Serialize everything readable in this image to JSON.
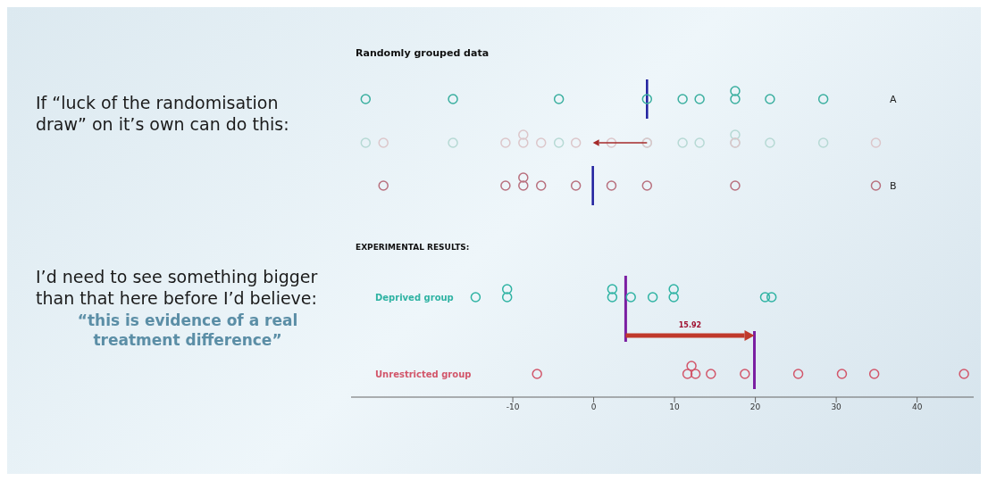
{
  "chart_data": {
    "type": "scatter",
    "title": "Randomly grouped data",
    "orientation": "horizontal",
    "categories": [
      "A",
      "B",
      "Deprived group",
      "Unrestricted group"
    ],
    "marker": "circle",
    "xlim": [
      -30,
      47
    ],
    "xticks": [
      -10,
      0,
      10,
      20,
      30,
      40
    ],
    "series": [
      {
        "color": "#3aaf9f",
        "x": [
          "A",
          "A",
          "A",
          "A",
          "A",
          "A",
          "A",
          "A",
          "A",
          "A"
        ],
        "values": [
          -28.2,
          -17.4,
          -4.3,
          6.6,
          11.0,
          13.1,
          17.5,
          17.5,
          21.8,
          28.4
        ]
      },
      {
        "color": "#b8707e",
        "x": [
          "B",
          "B",
          "B",
          "B",
          "B",
          "B",
          "B",
          "B",
          "B",
          "B"
        ],
        "values": [
          -26.0,
          -10.9,
          -8.7,
          -8.7,
          -6.5,
          -2.2,
          2.2,
          6.6,
          17.5,
          34.9
        ]
      },
      {
        "color": "#2fb3a3",
        "x": [
          "Deprived group",
          "Deprived group",
          "Deprived group",
          "Deprived group",
          "Deprived group",
          "Deprived group",
          "Deprived group",
          "Deprived group",
          "Deprived group",
          "Deprived group",
          "Deprived group"
        ],
        "values": [
          -14.6,
          -10.7,
          -10.7,
          2.3,
          2.3,
          4.6,
          7.3,
          9.9,
          9.9,
          21.2,
          22.0
        ]
      },
      {
        "color": "#d2566a",
        "x": [
          "Unrestricted group",
          "Unrestricted group",
          "Unrestricted group",
          "Unrestricted group",
          "Unrestricted group",
          "Unrestricted group",
          "Unrestricted group",
          "Unrestricted group",
          "Unrestricted group",
          "Unrestricted group"
        ],
        "values": [
          -7.0,
          11.6,
          12.1,
          12.6,
          14.5,
          18.7,
          25.3,
          30.7,
          34.7,
          45.8
        ]
      }
    ],
    "ref_lines": [
      {
        "axis": "x",
        "value": 6.6,
        "color": "#1f1f9e"
      },
      {
        "axis": "x",
        "value": -0.1,
        "color": "#1f1f9e"
      },
      {
        "axis": "x",
        "value": 3.96,
        "color": "#7b1fa2"
      },
      {
        "axis": "x",
        "value": 19.88,
        "color": "#7b1fa2"
      }
    ],
    "annotations": [
      "If “luck of the randomisation draw” on it’s own can do this:",
      "I’d need to see something bigger than that here before I’d believe:",
      "“this is evidence of a real treatment difference”",
      "EXPERIMENTAL RESULTS:",
      "15.92"
    ]
  }
}
